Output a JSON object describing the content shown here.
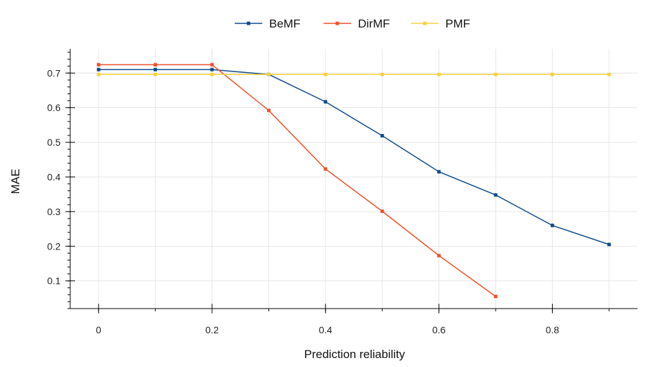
{
  "chart_data": {
    "type": "line",
    "xlabel": "Prediction reliability",
    "ylabel": "MAE",
    "xlim": [
      -0.05,
      0.95
    ],
    "ylim": [
      0.02,
      0.77
    ],
    "xticks": [
      0,
      0.2,
      0.4,
      0.6,
      0.8
    ],
    "xtick_labels": [
      "0",
      "0.2",
      "0.4",
      "0.6",
      "0.8"
    ],
    "yticks": [
      0.1,
      0.2,
      0.3,
      0.4,
      0.5,
      0.6,
      0.7
    ],
    "ytick_labels": [
      "0.1",
      "0.2",
      "0.3",
      "0.4",
      "0.5",
      "0.6",
      "0.7"
    ],
    "x_gridlines": [
      0,
      0.1,
      0.2,
      0.3,
      0.4,
      0.5,
      0.6,
      0.7,
      0.8,
      0.9
    ],
    "grid": true,
    "legend_position": "top",
    "series": [
      {
        "name": "BeMF",
        "color": "#0e4a8a",
        "x": [
          0,
          0.1,
          0.2,
          0.3,
          0.4,
          0.5,
          0.6,
          0.7,
          0.8,
          0.9
        ],
        "y": [
          0.71,
          0.71,
          0.71,
          0.696,
          0.617,
          0.519,
          0.415,
          0.348,
          0.26,
          0.205
        ]
      },
      {
        "name": "DirMF",
        "color": "#f0502a",
        "x": [
          0,
          0.1,
          0.2,
          0.3,
          0.4,
          0.5,
          0.6,
          0.7
        ],
        "y": [
          0.724,
          0.724,
          0.724,
          0.592,
          0.423,
          0.301,
          0.173,
          0.055
        ]
      },
      {
        "name": "PMF",
        "color": "#f7d23e",
        "x": [
          0,
          0.1,
          0.2,
          0.3,
          0.4,
          0.5,
          0.6,
          0.7,
          0.8,
          0.9
        ],
        "y": [
          0.696,
          0.696,
          0.696,
          0.696,
          0.696,
          0.696,
          0.696,
          0.696,
          0.696,
          0.696
        ]
      }
    ]
  }
}
